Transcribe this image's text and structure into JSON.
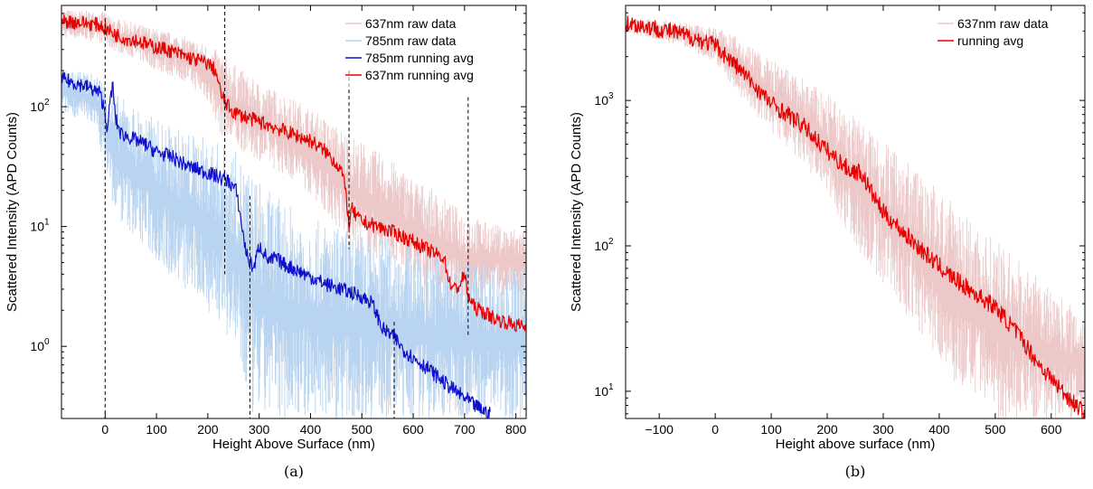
{
  "chart_data": [
    {
      "type": "line",
      "caption": "(a)",
      "xlabel": "Height Above Surface (nm)",
      "ylabel": "Scattered Intensity (APD Counts)",
      "xlim": [
        -85,
        820
      ],
      "ylim": [
        0.25,
        700
      ],
      "yscale": "log",
      "xticks": [
        0,
        100,
        200,
        300,
        400,
        500,
        600,
        700,
        800
      ],
      "yticks": [
        {
          "v": 1,
          "base": "10",
          "exp": "0"
        },
        {
          "v": 10,
          "base": "10",
          "exp": "1"
        },
        {
          "v": 100,
          "base": "10",
          "exp": "2"
        }
      ],
      "vlines": [
        {
          "x": 0,
          "y_from": 0.25,
          "y_to": 550
        },
        {
          "x": 233,
          "y_from": 4,
          "y_to": 700
        },
        {
          "x": 282,
          "y_from": 0.25,
          "y_to": 18
        },
        {
          "x": 475,
          "y_from": 6.5,
          "y_to": 200
        },
        {
          "x": 563,
          "y_from": 0.25,
          "y_to": 1.6
        },
        {
          "x": 707,
          "y_from": 1.2,
          "y_to": 120
        }
      ],
      "legend": {
        "placement": "top-right",
        "entries": [
          "637nm raw data",
          "785nm raw data",
          "785nm running avg",
          "637nm running avg"
        ]
      },
      "series": [
        {
          "name": "637nm raw data",
          "color": "#ecc8c8",
          "style": "band",
          "x": [
            -85,
            0,
            10,
            60,
            100,
            160,
            200,
            233,
            280,
            330,
            380,
            420,
            475,
            520,
            560,
            600,
            640,
            680,
            707,
            740,
            780,
            820
          ],
          "upper": [
            650,
            620,
            560,
            500,
            450,
            380,
            330,
            270,
            180,
            140,
            110,
            85,
            60,
            45,
            35,
            26,
            20,
            15,
            13,
            11,
            10,
            9.5
          ],
          "lower": [
            380,
            340,
            300,
            250,
            200,
            160,
            110,
            50,
            40,
            30,
            22,
            15,
            7,
            5.5,
            4.5,
            3.5,
            2.8,
            2.5,
            2,
            2.8,
            2.6,
            2.5
          ]
        },
        {
          "name": "785nm raw data",
          "color": "#b9d4f0",
          "style": "band",
          "x": [
            -85,
            -20,
            0,
            20,
            60,
            100,
            150,
            200,
            250,
            282,
            320,
            360,
            400,
            450,
            500,
            563,
            600,
            650,
            700,
            760,
            820
          ],
          "upper": [
            200,
            190,
            170,
            130,
            100,
            80,
            65,
            55,
            45,
            30,
            20,
            15,
            12,
            10,
            9,
            8,
            7,
            6,
            5.5,
            5,
            4.5
          ],
          "lower": [
            90,
            70,
            30,
            12,
            8,
            5,
            3,
            2,
            1,
            0.25,
            0.25,
            0.25,
            0.25,
            0.25,
            0.25,
            0.25,
            0.25,
            0.25,
            0.25,
            0.25,
            0.25
          ]
        },
        {
          "name": "785nm running avg",
          "color": "#1010cc",
          "style": "line",
          "x": [
            -85,
            -40,
            -10,
            0,
            5,
            10,
            15,
            20,
            30,
            50,
            80,
            100,
            130,
            160,
            180,
            200,
            220,
            240,
            255,
            260,
            265,
            270,
            275,
            282,
            290,
            300,
            310,
            320,
            330,
            350,
            380,
            400,
            430,
            460,
            480,
            500,
            520,
            530,
            540,
            550,
            563,
            580,
            600,
            630,
            660,
            690,
            720,
            750
          ],
          "y": [
            170,
            150,
            130,
            90,
            60,
            120,
            150,
            80,
            60,
            55,
            48,
            42,
            38,
            32,
            30,
            28,
            26,
            24,
            20,
            15,
            11,
            8,
            6,
            5,
            4.5,
            7,
            6,
            5,
            5.5,
            4.8,
            4.2,
            3.8,
            3.3,
            3,
            2.8,
            2.6,
            2.3,
            1.8,
            1.4,
            1.3,
            1.2,
            0.95,
            0.8,
            0.65,
            0.5,
            0.4,
            0.32,
            0.27
          ]
        },
        {
          "name": "637nm running avg",
          "color": "#e60000",
          "style": "line",
          "x": [
            -85,
            -40,
            -10,
            0,
            20,
            40,
            60,
            90,
            120,
            160,
            200,
            215,
            225,
            233,
            240,
            250,
            280,
            320,
            360,
            400,
            430,
            460,
            470,
            475,
            480,
            490,
            500,
            530,
            560,
            600,
            640,
            660,
            670,
            680,
            690,
            700,
            707,
            710,
            720,
            740,
            760,
            780,
            800,
            820
          ],
          "y": [
            520,
            500,
            480,
            450,
            400,
            370,
            360,
            320,
            300,
            260,
            230,
            200,
            130,
            110,
            100,
            90,
            80,
            70,
            60,
            52,
            42,
            30,
            18,
            10,
            14,
            12,
            11,
            10,
            9,
            7.5,
            6,
            5.5,
            3.5,
            3,
            3.2,
            4,
            2.6,
            2.5,
            2.1,
            1.9,
            1.7,
            1.6,
            1.5,
            1.45
          ]
        }
      ]
    },
    {
      "type": "line",
      "caption": "(b)",
      "xlabel": "Height above surface (nm)",
      "ylabel": "Scattered Intensity (APD Counts)",
      "xlim": [
        -160,
        660
      ],
      "ylim": [
        6.5,
        4500
      ],
      "yscale": "log",
      "xticks": [
        -100,
        0,
        100,
        200,
        300,
        400,
        500,
        600
      ],
      "xtick_labels": [
        "−100",
        "0",
        "100",
        "200",
        "300",
        "400",
        "500",
        "600"
      ],
      "yticks": [
        {
          "v": 10,
          "base": "10",
          "exp": "1"
        },
        {
          "v": 100,
          "base": "10",
          "exp": "2"
        },
        {
          "v": 1000,
          "base": "10",
          "exp": "3"
        }
      ],
      "legend": {
        "placement": "top-right",
        "entries": [
          "637nm raw data",
          "running avg"
        ]
      },
      "series": [
        {
          "name": "637nm raw data",
          "color": "#ecc8c8",
          "style": "band",
          "x": [
            -160,
            -100,
            -50,
            0,
            50,
            100,
            150,
            200,
            250,
            300,
            350,
            400,
            450,
            500,
            550,
            600,
            660
          ],
          "upper": [
            3800,
            3600,
            3400,
            3200,
            2600,
            1900,
            1500,
            1100,
            800,
            550,
            380,
            240,
            160,
            110,
            75,
            50,
            35
          ],
          "lower": [
            2900,
            2600,
            2300,
            1800,
            1000,
            600,
            380,
            220,
            100,
            55,
            30,
            16,
            9,
            6.5,
            6.5,
            6.5,
            6.5
          ]
        },
        {
          "name": "running avg",
          "color": "#e60000",
          "style": "line",
          "x": [
            -160,
            -120,
            -80,
            -40,
            0,
            10,
            20,
            40,
            60,
            80,
            100,
            130,
            160,
            200,
            240,
            260,
            280,
            300,
            340,
            380,
            420,
            460,
            500,
            540,
            580,
            620,
            660
          ],
          "y": [
            3400,
            3200,
            3000,
            2700,
            2400,
            2200,
            2000,
            1700,
            1400,
            1150,
            950,
            800,
            650,
            450,
            330,
            320,
            230,
            170,
            120,
            85,
            62,
            48,
            38,
            25,
            15,
            10,
            7
          ]
        }
      ]
    }
  ]
}
